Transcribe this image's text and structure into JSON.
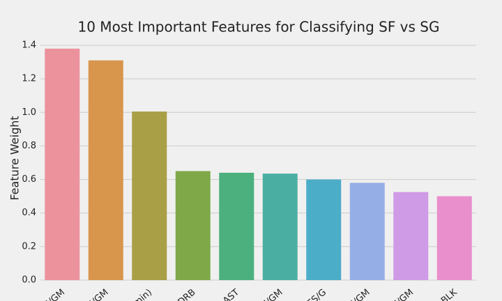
{
  "chart_data": {
    "type": "bar",
    "title": "10 Most Important Features for Classifying SF vs SG",
    "y_label": "Feature Weight",
    "categories": [
      "S/GM",
      "I/GM",
      "(min)",
      "DRB",
      "AST",
      "F/GM",
      "FS/G",
      "S/GM",
      "F/GM",
      "BLK"
    ],
    "values": [
      1.38,
      1.31,
      1.005,
      0.65,
      0.64,
      0.635,
      0.6,
      0.58,
      0.525,
      0.5
    ],
    "colors": [
      "#ec929c",
      "#d8954c",
      "#a89f47",
      "#7fa948",
      "#4bb07d",
      "#4aafa2",
      "#4cadc8",
      "#96aee6",
      "#cf9ae6",
      "#e88fcc"
    ],
    "ylim": [
      0,
      1.4
    ],
    "yticks": [
      {
        "value": 0,
        "label": "0.0"
      },
      0.2,
      0.4,
      0.6,
      0.8,
      {
        "value": 1,
        "label": "1.0"
      },
      1.2,
      1.4
    ],
    "grid": true
  }
}
